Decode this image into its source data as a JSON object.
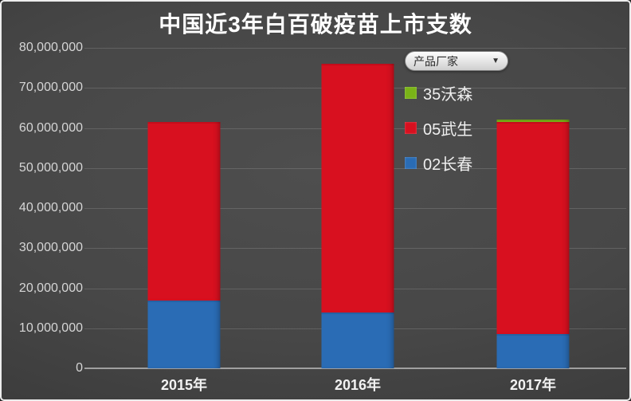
{
  "title": "中国近3年白百破疫苗上市支数",
  "legend": {
    "dropdown_label": "产品厂家",
    "dropdown_arrow": "▼",
    "items": [
      {
        "label": "35沃森",
        "color": "#7ab317"
      },
      {
        "label": "05武生",
        "color": "#d8101f"
      },
      {
        "label": "02长春",
        "color": "#2a6cb5"
      }
    ]
  },
  "chart_data": {
    "type": "bar",
    "stacked": true,
    "title": "中国近3年白百破疫苗上市支数",
    "categories": [
      "2015年",
      "2016年",
      "2017年"
    ],
    "series": [
      {
        "name": "02长春",
        "color": "#2a6cb5",
        "values": [
          17000000,
          14000000,
          8500000
        ]
      },
      {
        "name": "05武生",
        "color": "#d8101f",
        "values": [
          44500000,
          62000000,
          53000000
        ]
      },
      {
        "name": "35沃森",
        "color": "#7ab317",
        "values": [
          0,
          0,
          500000
        ]
      }
    ],
    "ylim": [
      0,
      80000000
    ],
    "ytick_interval": 10000000,
    "ytick_labels": [
      "0",
      "10,000,000",
      "20,000,000",
      "30,000,000",
      "40,000,000",
      "50,000,000",
      "60,000,000",
      "70,000,000",
      "80,000,000"
    ],
    "grid": true,
    "legend_title": "产品厂家",
    "legend_position": "inside-upper-right"
  }
}
